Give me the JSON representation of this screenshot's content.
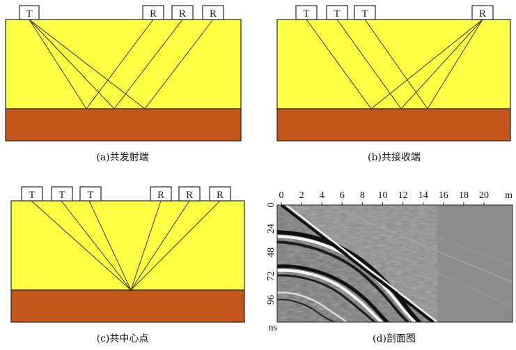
{
  "colors": {
    "upper_layer": "#ffff44",
    "lower_layer": "#c4561a",
    "section_bg": "#8c8c8c"
  },
  "panels": {
    "a": {
      "caption": "(a)共发射端",
      "transmitter_labels": [
        "T"
      ],
      "receiver_labels": [
        "R",
        "R",
        "R"
      ]
    },
    "b": {
      "caption": "(b)共接收端",
      "transmitter_labels": [
        "T",
        "T",
        "T"
      ],
      "receiver_labels": [
        "R"
      ]
    },
    "c": {
      "caption": "(c)共中心点",
      "transmitter_labels": [
        "T",
        "T",
        "T"
      ],
      "receiver_labels": [
        "R",
        "R",
        "R"
      ]
    },
    "d": {
      "caption": "(d)剖面图",
      "x_ticks": [
        "0",
        "2",
        "4",
        "6",
        "8",
        "10",
        "12",
        "14",
        "16",
        "18",
        "20"
      ],
      "x_unit": "m",
      "y_ticks": [
        "0",
        "24",
        "48",
        "72",
        "96"
      ],
      "y_unit": "ns"
    }
  }
}
